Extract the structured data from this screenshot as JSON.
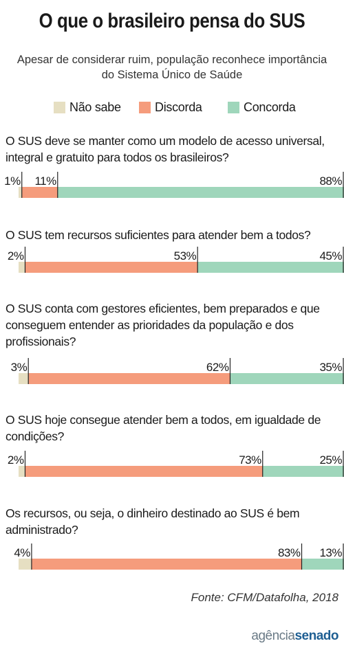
{
  "title": "O que o brasileiro pensa do SUS",
  "subtitle": "Apesar de considerar ruim, população reconhece importância do Sistema Único de Saúde",
  "legend": [
    {
      "name": "Não sabe",
      "color": "#e6dfc2"
    },
    {
      "name": "Discorda",
      "color": "#f59c7c"
    },
    {
      "name": "Concorda",
      "color": "#9fd6bb"
    }
  ],
  "chart_data": {
    "type": "bar",
    "orientation": "horizontal-stacked",
    "series_names": [
      "Não sabe",
      "Discorda",
      "Concorda"
    ],
    "questions": [
      {
        "text": "O SUS deve se manter como um modelo de acesso universal, integral e gratuito para todos os brasileiros?",
        "values": [
          1,
          11,
          88
        ],
        "labels": [
          "1%",
          "11%",
          "88%"
        ]
      },
      {
        "text": "O SUS tem recursos suficientes para atender bem a todos?",
        "values": [
          2,
          53,
          45
        ],
        "labels": [
          "2%",
          "53%",
          "45%"
        ]
      },
      {
        "text": "O SUS conta com gestores eficientes, bem preparados e que conseguem entender as prioridades da população e dos profissionais?",
        "values": [
          3,
          62,
          35
        ],
        "labels": [
          "3%",
          "62%",
          "35%"
        ]
      },
      {
        "text": "O SUS hoje consegue atender bem a todos, em igualdade de condições?",
        "values": [
          2,
          73,
          25
        ],
        "labels": [
          "2%",
          "73%",
          "25%"
        ]
      },
      {
        "text": "Os recursos, ou seja, o dinheiro destinado ao SUS é bem administrado?",
        "values": [
          4,
          83,
          13
        ],
        "labels": [
          "4%",
          "83%",
          "13%"
        ]
      }
    ]
  },
  "source": "Fonte: CFM/Datafolha, 2018",
  "logo": {
    "part1": "agência",
    "part2": "senado"
  }
}
